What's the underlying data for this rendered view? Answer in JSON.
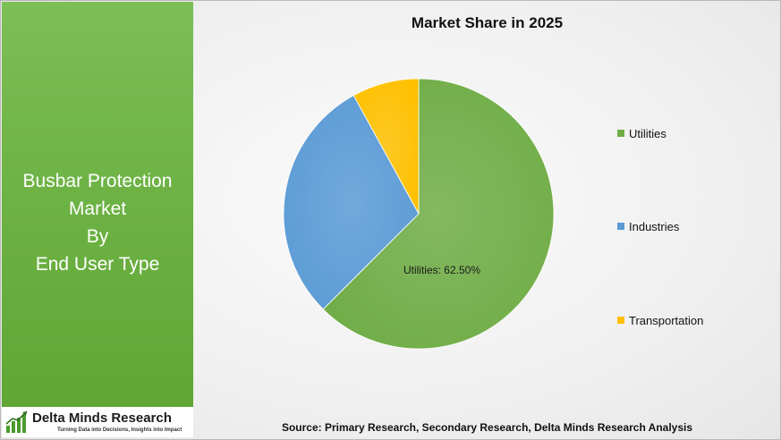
{
  "left_panel": {
    "title_lines": [
      "Busbar Protection",
      "Market",
      "By",
      "End User Type"
    ]
  },
  "logo": {
    "name": "Delta Minds Research",
    "tagline": "Turning Data into Decisions, Insights into Impact"
  },
  "source": "Source: Primary Research, Secondary Research, Delta Minds Research Analysis",
  "colors": {
    "utilities": "#70ad47",
    "industries": "#5b9bd5",
    "transportation": "#ffc000"
  },
  "chart_data": {
    "type": "pie",
    "title": "Market Share in 2025",
    "categories": [
      "Utilities",
      "Industries",
      "Transportation"
    ],
    "values": [
      62.5,
      29.5,
      8.0
    ],
    "data_labels": [
      "Utilities: 62.50%",
      "",
      ""
    ],
    "legend_position": "right",
    "start_angle_deg": 0,
    "direction": "clockwise"
  }
}
